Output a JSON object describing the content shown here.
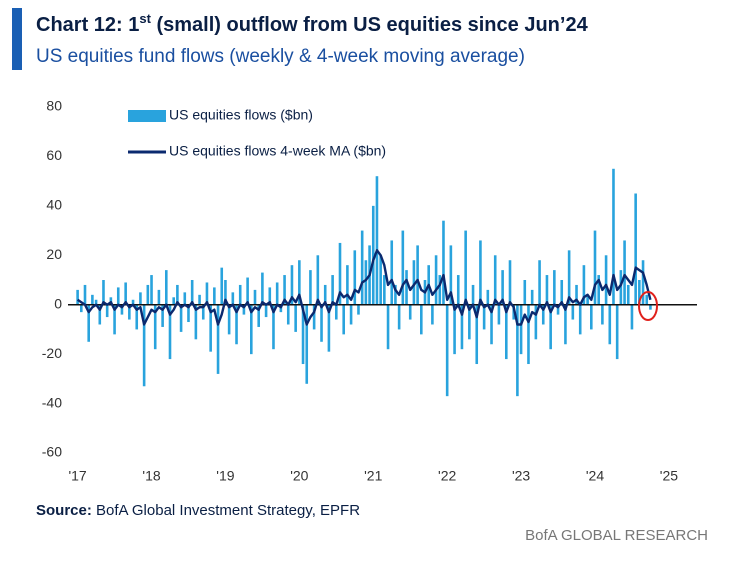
{
  "chart_data": {
    "type": "bar_line",
    "title_parts": [
      "Chart 12: 1",
      "st",
      " (small) outflow from US equities since Jun’24"
    ],
    "subtitle": "US equities fund flows (weekly & 4-week moving average)",
    "source_label": "Source:",
    "source_text": " BofA Global Investment Strategy, EPFR",
    "brand": "BofA GLOBAL RESEARCH",
    "legend": "upper left",
    "xlim": [
      2016.87,
      2025.38
    ],
    "xticks": [
      {
        "value": 2017,
        "label": "'17"
      },
      {
        "value": 2018,
        "label": "'18"
      },
      {
        "value": 2019,
        "label": "'19"
      },
      {
        "value": 2020,
        "label": "'20"
      },
      {
        "value": 2021,
        "label": "'21"
      },
      {
        "value": 2022,
        "label": "'22"
      },
      {
        "value": 2023,
        "label": "'23"
      },
      {
        "value": 2024,
        "label": "'24"
      },
      {
        "value": 2025,
        "label": "'25"
      }
    ],
    "ylim": [
      -60,
      80
    ],
    "yticks": [
      -60,
      -40,
      -20,
      0,
      20,
      40,
      60,
      80
    ],
    "x": [
      2017,
      2017.05,
      2017.1,
      2017.15,
      2017.2,
      2017.25,
      2017.3,
      2017.35,
      2017.4,
      2017.45,
      2017.5,
      2017.55,
      2017.6,
      2017.65,
      2017.7,
      2017.75,
      2017.8,
      2017.85,
      2017.9,
      2017.95,
      2018,
      2018.05,
      2018.1,
      2018.15,
      2018.2,
      2018.25,
      2018.3,
      2018.35,
      2018.4,
      2018.45,
      2018.5,
      2018.55,
      2018.6,
      2018.65,
      2018.7,
      2018.75,
      2018.8,
      2018.85,
      2018.9,
      2018.95,
      2019,
      2019.05,
      2019.1,
      2019.15,
      2019.2,
      2019.25,
      2019.3,
      2019.35,
      2019.4,
      2019.45,
      2019.5,
      2019.55,
      2019.6,
      2019.65,
      2019.7,
      2019.75,
      2019.8,
      2019.85,
      2019.9,
      2019.95,
      2020,
      2020.05,
      2020.1,
      2020.15,
      2020.2,
      2020.25,
      2020.3,
      2020.35,
      2020.4,
      2020.45,
      2020.5,
      2020.55,
      2020.6,
      2020.65,
      2020.7,
      2020.75,
      2020.8,
      2020.85,
      2020.9,
      2020.95,
      2021,
      2021.05,
      2021.1,
      2021.15,
      2021.2,
      2021.25,
      2021.3,
      2021.35,
      2021.4,
      2021.45,
      2021.5,
      2021.55,
      2021.6,
      2021.65,
      2021.7,
      2021.75,
      2021.8,
      2021.85,
      2021.9,
      2021.95,
      2022,
      2022.05,
      2022.1,
      2022.15,
      2022.2,
      2022.25,
      2022.3,
      2022.35,
      2022.4,
      2022.45,
      2022.5,
      2022.55,
      2022.6,
      2022.65,
      2022.7,
      2022.75,
      2022.8,
      2022.85,
      2022.9,
      2022.95,
      2023,
      2023.05,
      2023.1,
      2023.15,
      2023.2,
      2023.25,
      2023.3,
      2023.35,
      2023.4,
      2023.45,
      2023.5,
      2023.55,
      2023.6,
      2023.65,
      2023.7,
      2023.75,
      2023.8,
      2023.85,
      2023.9,
      2023.95,
      2024,
      2024.05,
      2024.1,
      2024.15,
      2024.2,
      2024.25,
      2024.3,
      2024.35,
      2024.4,
      2024.45,
      2024.5,
      2024.55,
      2024.6,
      2024.65,
      2024.7,
      2024.75
    ],
    "series": [
      {
        "name": "US equities flows ($bn)",
        "type": "bar",
        "color": "#29a3dd",
        "values": [
          6,
          -3,
          8,
          -15,
          4,
          2,
          -8,
          10,
          -5,
          3,
          -12,
          7,
          -4,
          9,
          -6,
          2,
          -10,
          5,
          -33,
          8,
          12,
          -18,
          6,
          -9,
          14,
          -22,
          3,
          8,
          -11,
          5,
          -7,
          10,
          -14,
          4,
          -6,
          9,
          -19,
          7,
          -28,
          15,
          10,
          -12,
          5,
          -16,
          8,
          -4,
          11,
          -20,
          6,
          -9,
          13,
          -5,
          7,
          -18,
          9,
          -3,
          12,
          -8,
          16,
          -11,
          18,
          -24,
          -32,
          14,
          -10,
          20,
          -15,
          8,
          -19,
          12,
          -6,
          25,
          -12,
          16,
          -8,
          22,
          -4,
          30,
          18,
          24,
          40,
          52,
          20,
          12,
          -18,
          26,
          8,
          -10,
          30,
          14,
          -6,
          18,
          24,
          -12,
          10,
          16,
          -8,
          20,
          12,
          34,
          -37,
          24,
          -20,
          12,
          -18,
          30,
          -14,
          8,
          -24,
          26,
          -10,
          6,
          -16,
          20,
          -8,
          14,
          -22,
          18,
          -6,
          -37,
          -20,
          10,
          -24,
          6,
          -14,
          18,
          -8,
          12,
          -18,
          14,
          -4,
          10,
          -16,
          22,
          -6,
          8,
          -12,
          16,
          4,
          -10,
          30,
          12,
          -8,
          20,
          -16,
          55,
          -22,
          14,
          26,
          8,
          -10,
          45,
          10,
          18,
          4,
          -2
        ]
      },
      {
        "name": "US equities flows 4-week MA ($bn)",
        "type": "line",
        "color": "#0b2a6f",
        "values": [
          2,
          1,
          0,
          -3,
          -1,
          0,
          -2,
          1,
          0,
          1,
          -2,
          0,
          -1,
          1,
          -1,
          0,
          -2,
          -1,
          -8,
          -5,
          -2,
          -3,
          -1,
          -2,
          0,
          -4,
          -2,
          1,
          -1,
          0,
          -1,
          1,
          -2,
          -1,
          -1,
          1,
          -3,
          -2,
          -8,
          -4,
          2,
          -1,
          0,
          -3,
          0,
          -1,
          1,
          -3,
          -1,
          -2,
          1,
          0,
          1,
          -3,
          0,
          -1,
          2,
          0,
          3,
          1,
          4,
          -2,
          -8,
          -5,
          -3,
          2,
          -1,
          1,
          -3,
          1,
          0,
          5,
          3,
          4,
          2,
          6,
          5,
          9,
          10,
          12,
          18,
          22,
          20,
          16,
          8,
          10,
          6,
          4,
          8,
          10,
          6,
          8,
          10,
          6,
          5,
          8,
          4,
          6,
          8,
          12,
          2,
          5,
          -2,
          0,
          -4,
          2,
          -2,
          0,
          -5,
          2,
          -1,
          0,
          -3,
          2,
          0,
          2,
          -3,
          1,
          -1,
          -8,
          -8,
          -4,
          -7,
          -3,
          -4,
          0,
          -2,
          1,
          -3,
          0,
          -1,
          1,
          -2,
          3,
          1,
          2,
          0,
          3,
          4,
          2,
          8,
          10,
          6,
          8,
          4,
          12,
          6,
          8,
          12,
          10,
          8,
          15,
          14,
          13,
          8,
          2
        ]
      }
    ]
  }
}
